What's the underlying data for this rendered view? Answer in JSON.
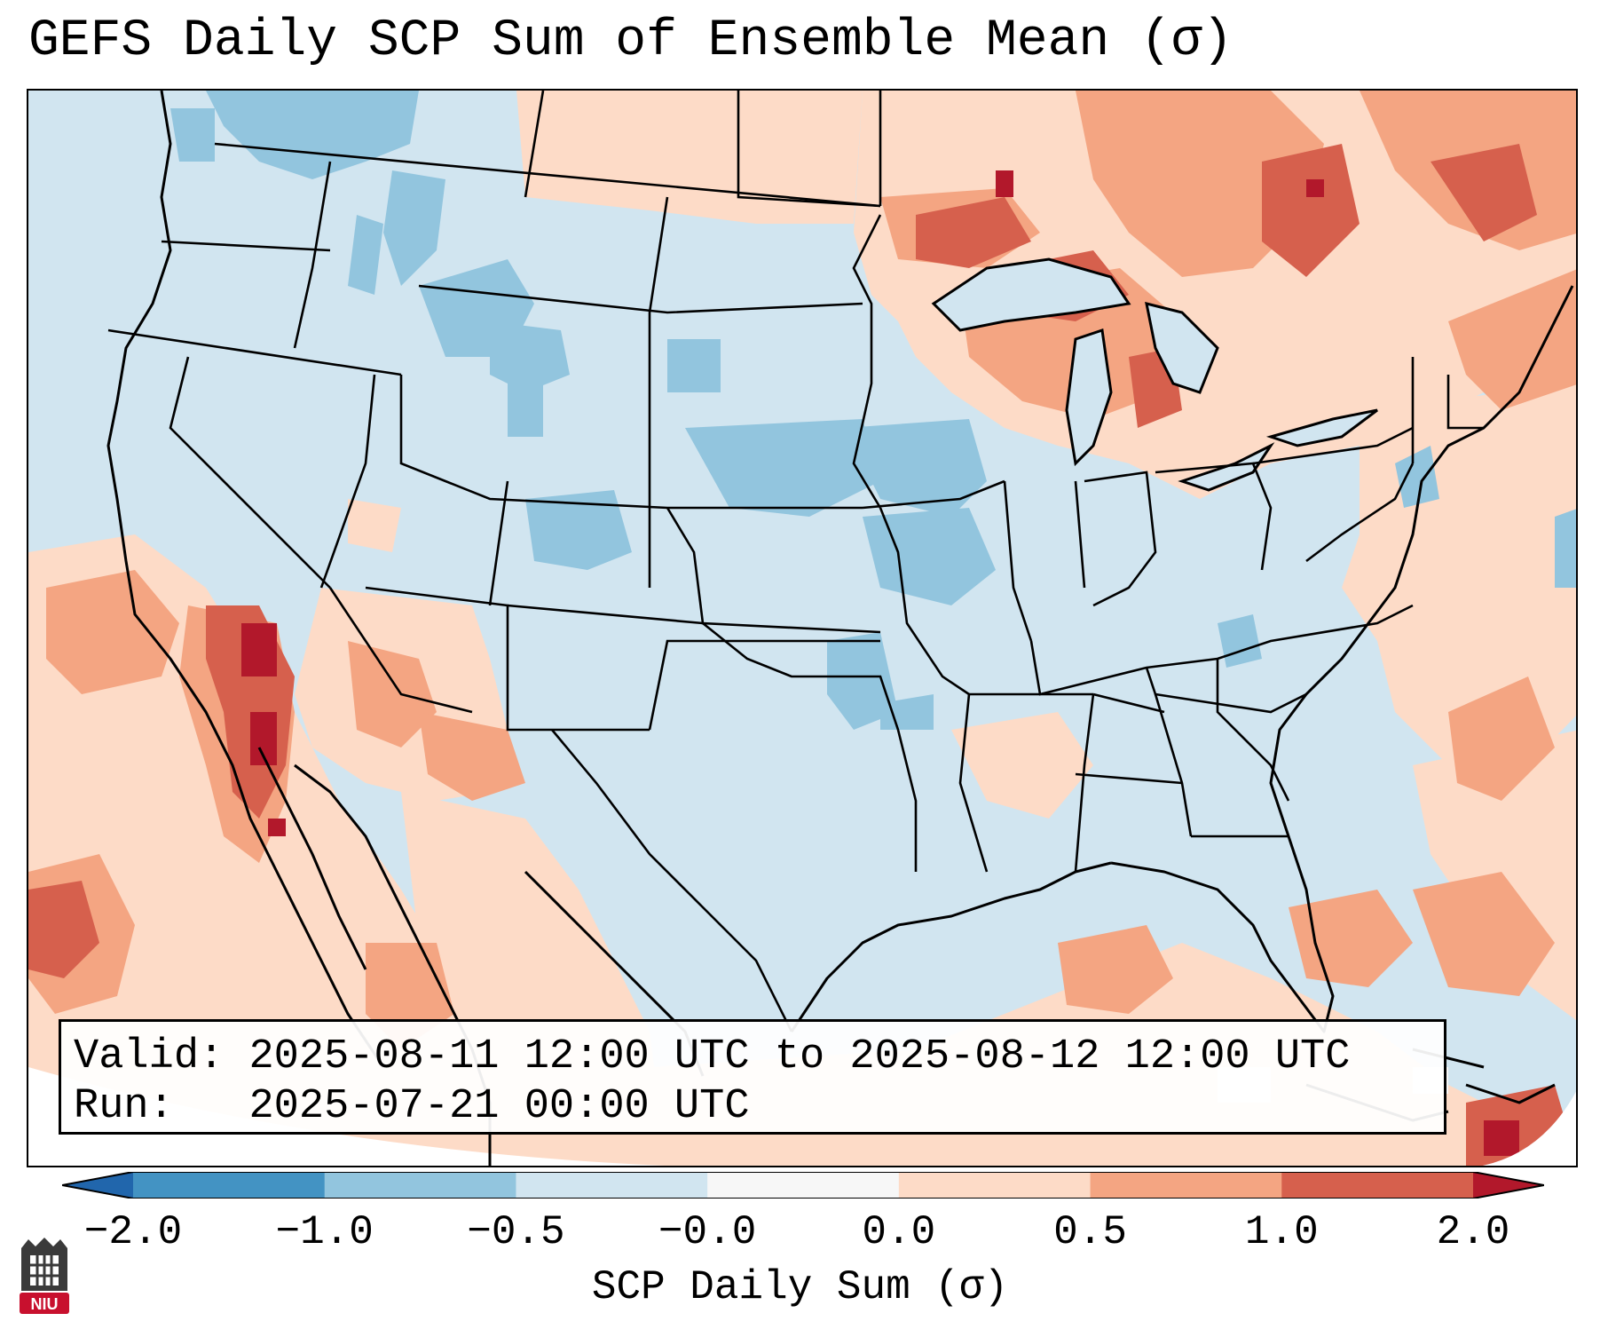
{
  "title": "GEFS Daily SCP Sum of Ensemble Mean (σ)",
  "info": {
    "valid_label": "Valid:",
    "valid_value": "2025-08-11 12:00 UTC to 2025-08-12 12:00 UTC",
    "run_label": "Run:",
    "run_value": "2025-07-21 00:00 UTC"
  },
  "colorbar": {
    "label": "SCP Daily Sum (σ)",
    "ticks": [
      "−2.0",
      "−1.0",
      "−0.5",
      "−0.0",
      "0.0",
      "0.5",
      "1.0",
      "2.0"
    ],
    "bins": [
      {
        "range": "-2.0 to -1.0",
        "color": "#4393c3"
      },
      {
        "range": "-1.0 to -0.5",
        "color": "#92c5de"
      },
      {
        "range": "-0.5 to -0.0",
        "color": "#d1e5f0"
      },
      {
        "range": "-0.0 to 0.0",
        "color": "#f7f7f7"
      },
      {
        "range": "0.0 to 0.5",
        "color": "#fddbc7"
      },
      {
        "range": "0.5 to 1.0",
        "color": "#f4a582"
      },
      {
        "range": "1.0 to 2.0",
        "color": "#d6604d"
      }
    ],
    "under_color": "#2166ac",
    "over_color": "#b2182b"
  },
  "map": {
    "region": "Contiguous United States",
    "background_color": "#d1e5f0",
    "boundary_color": "#000000"
  },
  "logo": {
    "text": "NIU",
    "icon": "niu-logo-icon"
  }
}
